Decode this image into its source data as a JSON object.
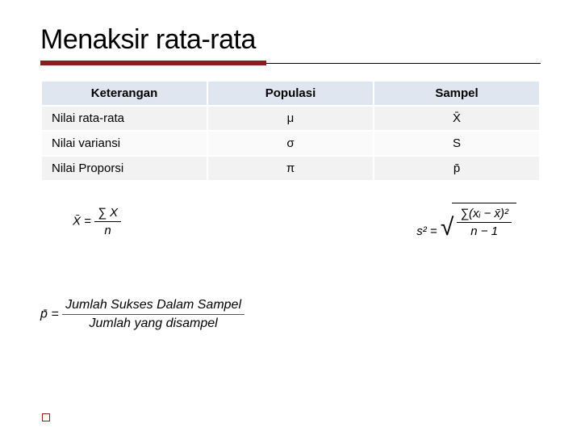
{
  "title": "Menaksir rata-rata",
  "table": {
    "headers": [
      "Keterangan",
      "Populasi",
      "Sampel"
    ],
    "rows": [
      {
        "label": "Nilai rata-rata",
        "populasi": "μ",
        "sampel": "X̄"
      },
      {
        "label": "Nilai variansi",
        "populasi": "σ",
        "sampel": "S"
      },
      {
        "label": "Nilai Proporsi",
        "populasi": "π",
        "sampel": "p̄"
      }
    ]
  },
  "formulas": {
    "mean_left_lhs": "X̄ =",
    "mean_left_num": "∑ X",
    "mean_left_den": "n",
    "var_right_lhs": "s² =",
    "var_right_num": "∑(xᵢ − x̄)²",
    "var_right_den": "n − 1",
    "prop_lhs": "p̄ =",
    "prop_num": "Jumlah Sukses Dalam Sampel",
    "prop_den": "Jumlah yang disampel"
  },
  "colors": {
    "accent": "#8a1c1c",
    "th_bg": "#e0e6ef",
    "row_odd": "#f2f2f2",
    "row_even": "#fafafa"
  }
}
